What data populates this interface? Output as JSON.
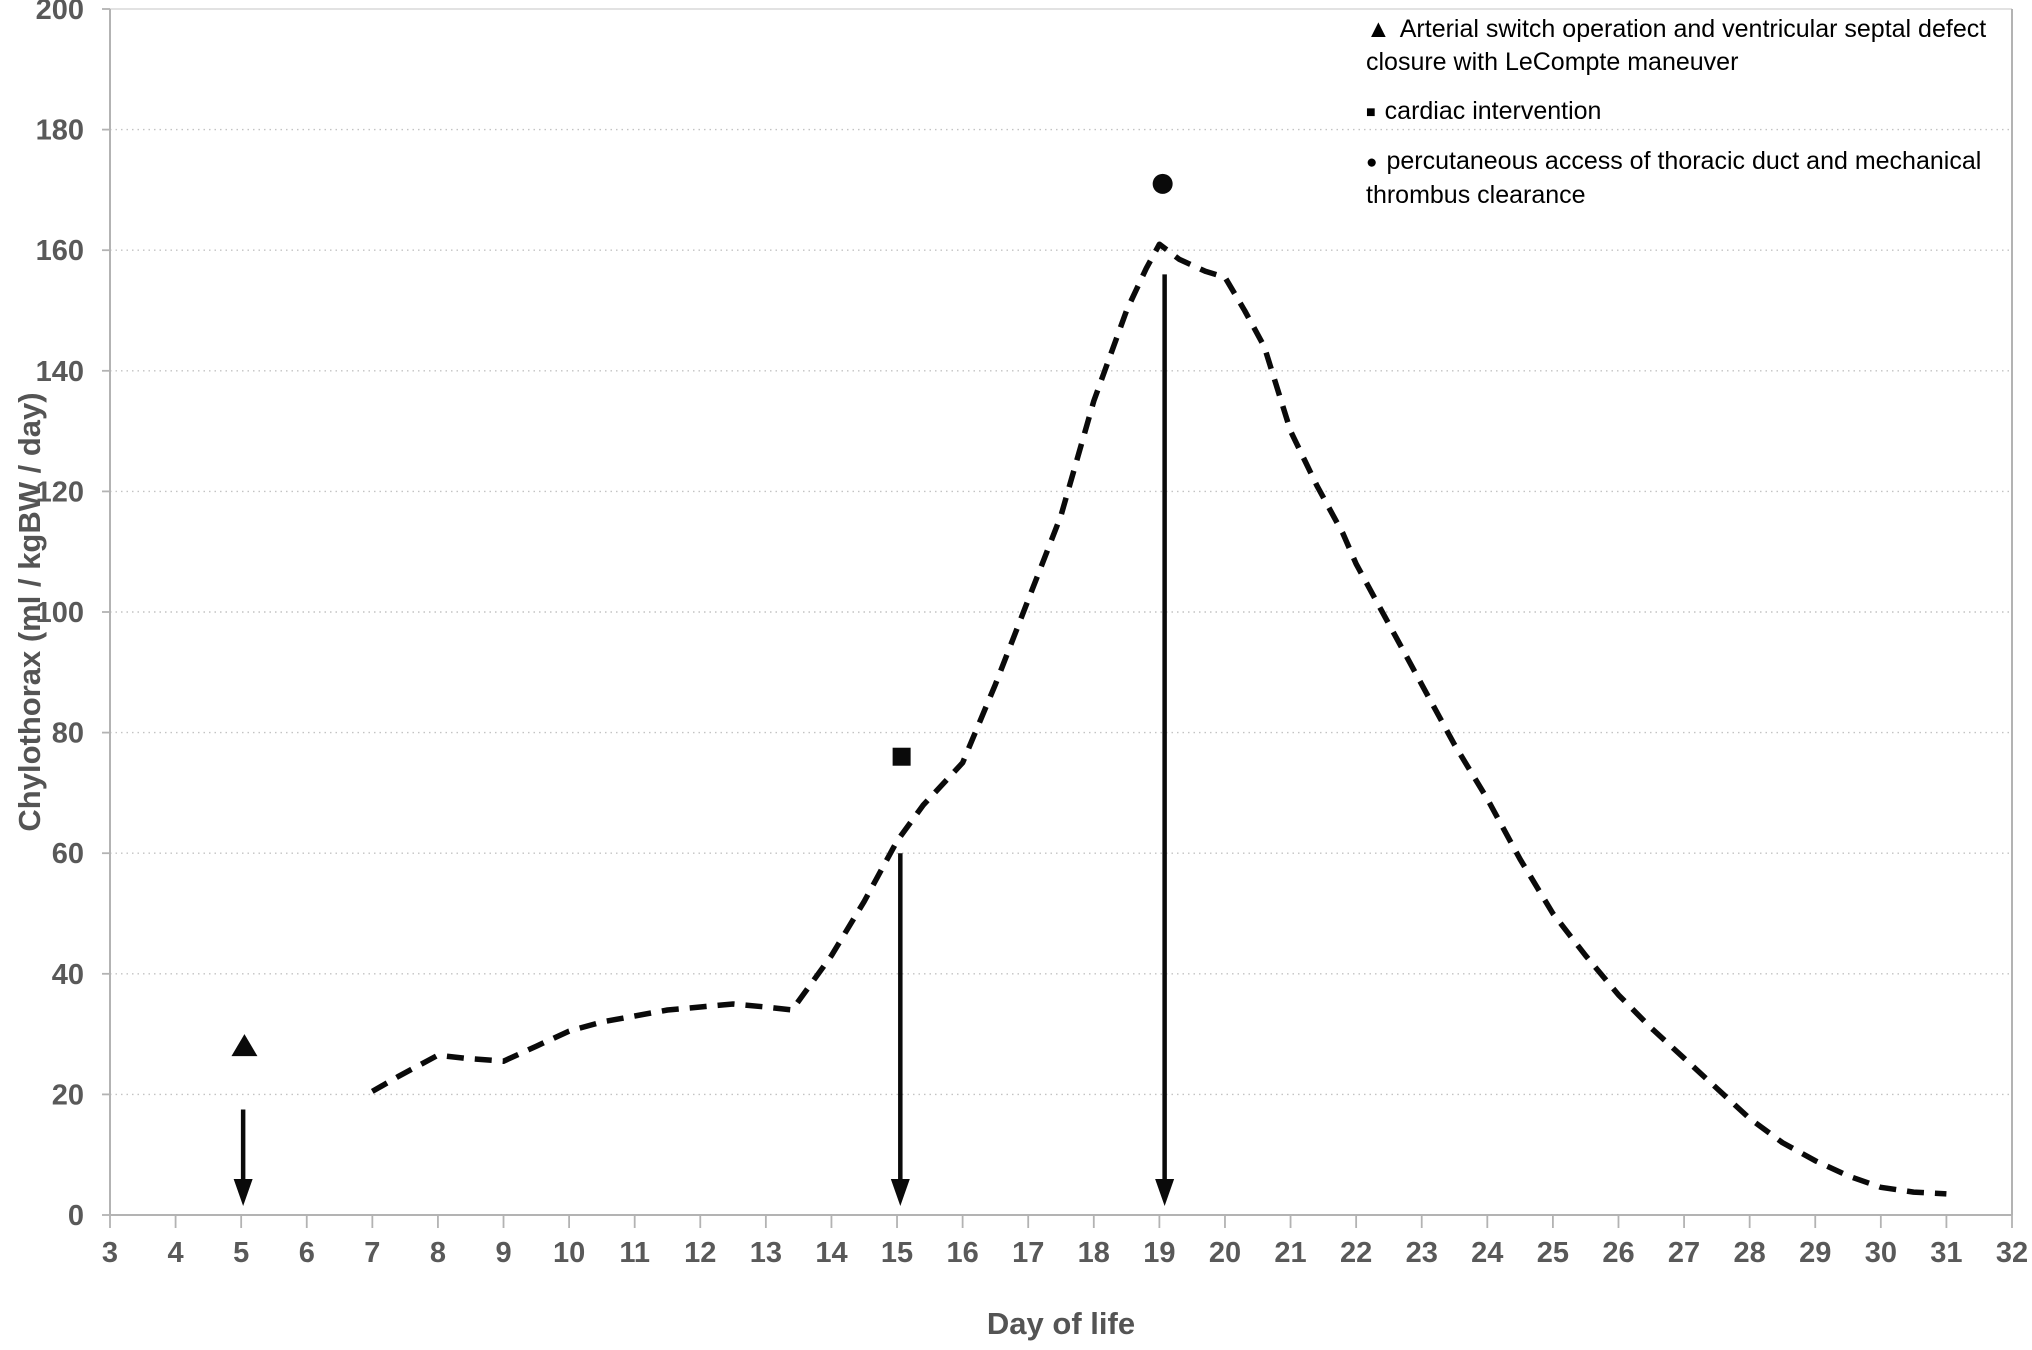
{
  "chart_data": {
    "type": "line",
    "title": "",
    "xlabel": "Day of life",
    "ylabel": "Chylothorax (ml / kgBW / day)",
    "xlim": [
      3,
      32
    ],
    "ylim": [
      0,
      200
    ],
    "x_ticks": [
      3,
      4,
      5,
      6,
      7,
      8,
      9,
      10,
      11,
      12,
      13,
      14,
      15,
      16,
      17,
      18,
      19,
      20,
      21,
      22,
      23,
      24,
      25,
      26,
      27,
      28,
      29,
      30,
      31,
      32
    ],
    "y_ticks": [
      0,
      20,
      40,
      60,
      80,
      100,
      120,
      140,
      160,
      180,
      200
    ],
    "grid": "horizontal-dotted",
    "legend_position": "top-right",
    "series": [
      {
        "name": "chylothorax-output",
        "line_style": "dashed",
        "color": "#0a0a0a",
        "points": [
          [
            7,
            20.5
          ],
          [
            7.4,
            23
          ],
          [
            8,
            26.5
          ],
          [
            8.4,
            26
          ],
          [
            9,
            25.5
          ],
          [
            9.5,
            28
          ],
          [
            10,
            30.5
          ],
          [
            10.5,
            32
          ],
          [
            11,
            33
          ],
          [
            11.5,
            34
          ],
          [
            12,
            34.5
          ],
          [
            12.5,
            35
          ],
          [
            13,
            34.5
          ],
          [
            13.4,
            34
          ],
          [
            14,
            43
          ],
          [
            14.5,
            52
          ],
          [
            15,
            62
          ],
          [
            15.4,
            68
          ],
          [
            16,
            75
          ],
          [
            16.5,
            88
          ],
          [
            17,
            102
          ],
          [
            17.5,
            116
          ],
          [
            18,
            135
          ],
          [
            18.5,
            150
          ],
          [
            18.8,
            157
          ],
          [
            19,
            161
          ],
          [
            19.3,
            158.5
          ],
          [
            19.7,
            156.5
          ],
          [
            20,
            155.5
          ],
          [
            20.3,
            150
          ],
          [
            20.6,
            144
          ],
          [
            21,
            130
          ],
          [
            21.4,
            121
          ],
          [
            21.8,
            113
          ],
          [
            22,
            108
          ],
          [
            22.5,
            98
          ],
          [
            23,
            88
          ],
          [
            23.5,
            78
          ],
          [
            24,
            69
          ],
          [
            24.5,
            59
          ],
          [
            25,
            50
          ],
          [
            25.5,
            43
          ],
          [
            26,
            36.5
          ],
          [
            26.5,
            31
          ],
          [
            27,
            26
          ],
          [
            27.5,
            21
          ],
          [
            28,
            16
          ],
          [
            28.5,
            12
          ],
          [
            29,
            9
          ],
          [
            29.5,
            6.5
          ],
          [
            30,
            4.6
          ],
          [
            30.5,
            3.8
          ],
          [
            31,
            3.5
          ]
        ]
      }
    ],
    "markers": [
      {
        "shape": "triangle",
        "x": 5.05,
        "y": 28
      },
      {
        "shape": "square",
        "x": 15.07,
        "y": 76
      },
      {
        "shape": "circle",
        "x": 19.05,
        "y": 171
      }
    ],
    "arrows": [
      {
        "x": 5.03,
        "y_from": 17.5,
        "y_to": 1.5
      },
      {
        "x": 15.05,
        "y_from": 60,
        "y_to": 1.5
      },
      {
        "x": 19.08,
        "y_from": 156,
        "y_to": 1.5
      }
    ],
    "legend": {
      "items": [
        {
          "glyph": "▲",
          "label": "Arterial switch operation and ventricular septal defect closure with LeCompte maneuver"
        },
        {
          "glyph": "■",
          "label": "cardiac intervention"
        },
        {
          "glyph": "●",
          "label": "percutaneous access of thoracic duct and mechanical thrombus clearance"
        }
      ]
    },
    "colors": {
      "line": "#0a0a0a",
      "grid": "#c3c3c3",
      "axis": "#b3b3b3",
      "tick_label": "#595959",
      "axis_title": "#545454",
      "legend_text": "#000000",
      "background": "#ffffff"
    }
  }
}
